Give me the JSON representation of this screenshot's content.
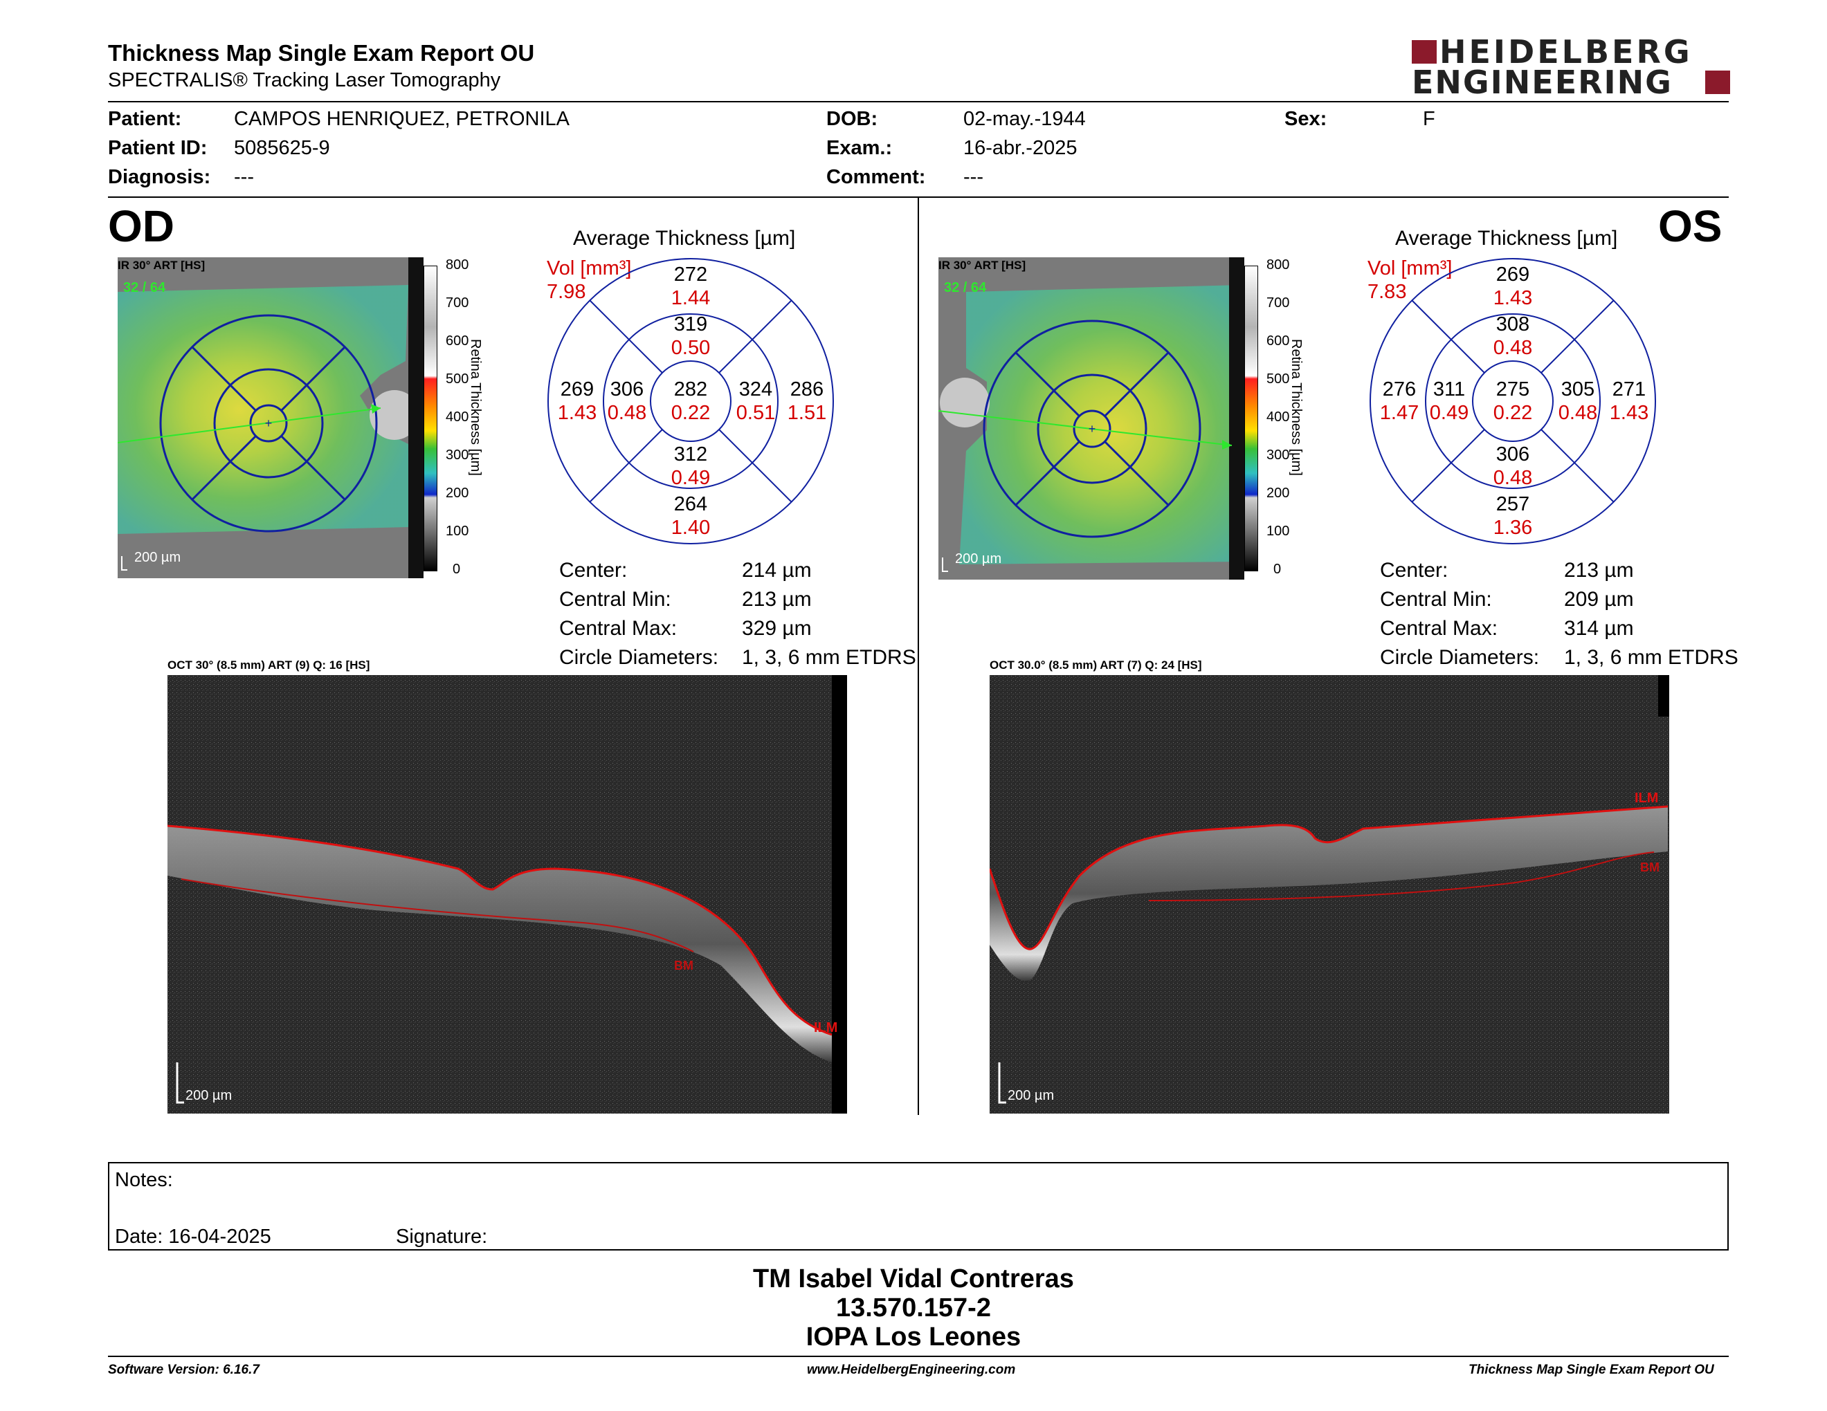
{
  "header": {
    "title": "Thickness Map Single Exam Report OU",
    "subtitle": "SPECTRALIS® Tracking Laser Tomography",
    "logo_line1": "HEIDELBERG",
    "logo_line2": "ENGINEERING",
    "brand_color": "#8b1a2b"
  },
  "patient": {
    "patient_label": "Patient:",
    "patient_value": "CAMPOS HENRIQUEZ, PETRONILA",
    "id_label": "Patient ID:",
    "id_value": "5085625-9",
    "diagnosis_label": "Diagnosis:",
    "diagnosis_value": "---",
    "dob_label": "DOB:",
    "dob_value": "02-may.-1944",
    "exam_label": "Exam.:",
    "exam_value": "16-abr.-2025",
    "comment_label": "Comment:",
    "comment_value": "---",
    "sex_label": "Sex:",
    "sex_value": "F"
  },
  "od": {
    "eye": "OD",
    "map_caption": "IR 30° ART [HS]",
    "map_overlay_text": "32 / 64",
    "scale_text": "200 µm",
    "avg_title": "Average Thickness [µm]",
    "vol_label": "Vol [mm³]",
    "vol_total": "7.98",
    "etdrs": {
      "outer_sup_t": "272",
      "outer_sup_v": "1.44",
      "inner_sup_t": "319",
      "inner_sup_v": "0.50",
      "outer_temp_t": "269",
      "outer_temp_v": "1.43",
      "inner_temp_t": "306",
      "inner_temp_v": "0.48",
      "center_t": "282",
      "center_v": "0.22",
      "inner_nas_t": "324",
      "inner_nas_v": "0.51",
      "outer_nas_t": "286",
      "outer_nas_v": "1.51",
      "inner_inf_t": "312",
      "inner_inf_v": "0.49",
      "outer_inf_t": "264",
      "outer_inf_v": "1.40"
    },
    "stats": {
      "center_label": "Center:",
      "center_value": "214 µm",
      "cmin_label": "Central Min:",
      "cmin_value": "213 µm",
      "cmax_label": "Central Max:",
      "cmax_value": "329 µm",
      "circ_label": "Circle Diameters:",
      "circ_value": "1, 3, 6 mm ETDRS"
    },
    "oct_caption": "OCT 30° (8.5 mm) ART (9) Q: 16 [HS]",
    "oct_scale": "200 µm",
    "ilm_label": "ILM",
    "bm_label": "BM"
  },
  "os": {
    "eye": "OS",
    "map_caption": "IR 30° ART [HS]",
    "map_overlay_text": "32 / 64",
    "scale_text": "200 µm",
    "avg_title": "Average Thickness [µm]",
    "vol_label": "Vol [mm³]",
    "vol_total": "7.83",
    "etdrs": {
      "outer_sup_t": "269",
      "outer_sup_v": "1.43",
      "inner_sup_t": "308",
      "inner_sup_v": "0.48",
      "outer_temp_t": "276",
      "outer_temp_v": "1.47",
      "inner_temp_t": "311",
      "inner_temp_v": "0.49",
      "center_t": "275",
      "center_v": "0.22",
      "inner_nas_t": "305",
      "inner_nas_v": "0.48",
      "outer_nas_t": "271",
      "outer_nas_v": "1.43",
      "inner_inf_t": "306",
      "inner_inf_v": "0.48",
      "outer_inf_t": "257",
      "outer_inf_v": "1.36"
    },
    "stats": {
      "center_label": "Center:",
      "center_value": "213 µm",
      "cmin_label": "Central Min:",
      "cmin_value": "209 µm",
      "cmax_label": "Central Max:",
      "cmax_value": "314 µm",
      "circ_label": "Circle Diameters:",
      "circ_value": "1, 3, 6 mm ETDRS"
    },
    "oct_caption": "OCT 30.0° (8.5 mm) ART (7) Q: 24 [HS]",
    "oct_scale": "200 µm",
    "ilm_label": "ILM",
    "bm_label": "BM"
  },
  "colorbar": {
    "title": "Retina Thickness [µm]",
    "ticks": [
      "800",
      "700",
      "600",
      "500",
      "400",
      "300",
      "200",
      "100",
      "0"
    ]
  },
  "notes": {
    "notes_label": "Notes:",
    "date_label": "Date: 16-04-2025",
    "signature_label": "Signature:"
  },
  "signature_block": {
    "name": "TM Isabel Vidal Contreras",
    "id": "13.570.157-2",
    "org": "IOPA Los Leones"
  },
  "footer": {
    "software": "Software Version: 6.16.7",
    "website": "www.HeidelbergEngineering.com",
    "report": "Thickness Map Single Exam Report OU"
  }
}
